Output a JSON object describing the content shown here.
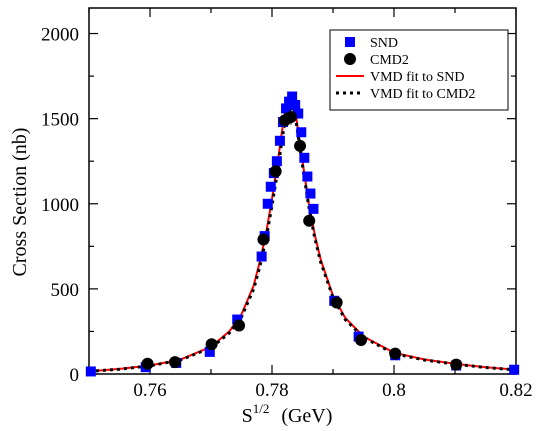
{
  "chart_data": {
    "type": "scatter",
    "xlabel": "S",
    "xlabel_sup": "1/2",
    "xlabel_unit": "(GeV)",
    "ylabel": "Cross Section (nb)",
    "xlim": [
      0.75,
      0.82
    ],
    "ylim": [
      0,
      2150
    ],
    "xticks": [
      0.76,
      0.78,
      0.8,
      0.82
    ],
    "xtick_labels": [
      "0.76",
      "0.78",
      "0.8",
      "0.82"
    ],
    "yticks": [
      0,
      500,
      1000,
      1500,
      2000
    ],
    "ytick_labels": [
      "0",
      "500",
      "1000",
      "1500",
      "2000"
    ],
    "grid": false,
    "legend_position": "top-right",
    "series": [
      {
        "name": "SND",
        "kind": "points",
        "marker": "square",
        "color": "#0000ff",
        "x": [
          0.7503,
          0.7593,
          0.7643,
          0.7698,
          0.7743,
          0.7783,
          0.7788,
          0.7793,
          0.7798,
          0.7803,
          0.7808,
          0.7813,
          0.7818,
          0.7823,
          0.7828,
          0.7833,
          0.7838,
          0.7843,
          0.7848,
          0.7853,
          0.7858,
          0.7863,
          0.7868,
          0.7902,
          0.7942,
          0.8002,
          0.8102,
          0.8197
        ],
        "y": [
          15,
          40,
          65,
          130,
          320,
          690,
          810,
          1000,
          1100,
          1180,
          1250,
          1370,
          1480,
          1560,
          1600,
          1630,
          1580,
          1530,
          1420,
          1270,
          1160,
          1060,
          970,
          430,
          220,
          110,
          50,
          25
        ]
      },
      {
        "name": "CMD2",
        "kind": "points",
        "marker": "circle",
        "color": "#000000",
        "x": [
          0.7596,
          0.7641,
          0.7701,
          0.7746,
          0.7786,
          0.7806,
          0.7821,
          0.7831,
          0.7846,
          0.7861,
          0.7906,
          0.7946,
          0.8002,
          0.8102
        ],
        "y": [
          60,
          70,
          175,
          285,
          790,
          1190,
          1490,
          1510,
          1340,
          900,
          420,
          200,
          120,
          55
        ],
        "yerr": [
          10,
          10,
          12,
          15,
          30,
          40,
          45,
          45,
          40,
          30,
          15,
          12,
          10,
          8
        ]
      },
      {
        "name": "VMD fit to SND",
        "kind": "line",
        "style": "solid",
        "color": "#ff0000",
        "x": [
          0.75,
          0.755,
          0.76,
          0.765,
          0.77,
          0.773,
          0.775,
          0.777,
          0.778,
          0.779,
          0.78,
          0.781,
          0.7815,
          0.782,
          0.7825,
          0.783,
          0.7835,
          0.784,
          0.7845,
          0.785,
          0.786,
          0.787,
          0.788,
          0.79,
          0.792,
          0.795,
          0.8,
          0.805,
          0.81,
          0.815,
          0.82
        ],
        "y": [
          15,
          30,
          50,
          85,
          160,
          250,
          350,
          520,
          660,
          820,
          1030,
          1260,
          1390,
          1510,
          1600,
          1650,
          1610,
          1500,
          1380,
          1250,
          1010,
          820,
          670,
          460,
          330,
          220,
          125,
          85,
          60,
          40,
          25
        ]
      },
      {
        "name": "VMD fit to CMD2",
        "kind": "line",
        "style": "dotted",
        "color": "#000000",
        "x": [
          0.75,
          0.755,
          0.76,
          0.765,
          0.77,
          0.773,
          0.775,
          0.777,
          0.778,
          0.779,
          0.78,
          0.781,
          0.7815,
          0.782,
          0.7825,
          0.783,
          0.7835,
          0.784,
          0.7845,
          0.785,
          0.786,
          0.787,
          0.788,
          0.79,
          0.792,
          0.795,
          0.8,
          0.805,
          0.81,
          0.815,
          0.82
        ],
        "y": [
          15,
          28,
          48,
          82,
          155,
          240,
          335,
          500,
          630,
          790,
          990,
          1210,
          1340,
          1460,
          1550,
          1600,
          1570,
          1470,
          1350,
          1225,
          990,
          800,
          655,
          450,
          320,
          215,
          120,
          82,
          58,
          38,
          24
        ]
      }
    ]
  }
}
